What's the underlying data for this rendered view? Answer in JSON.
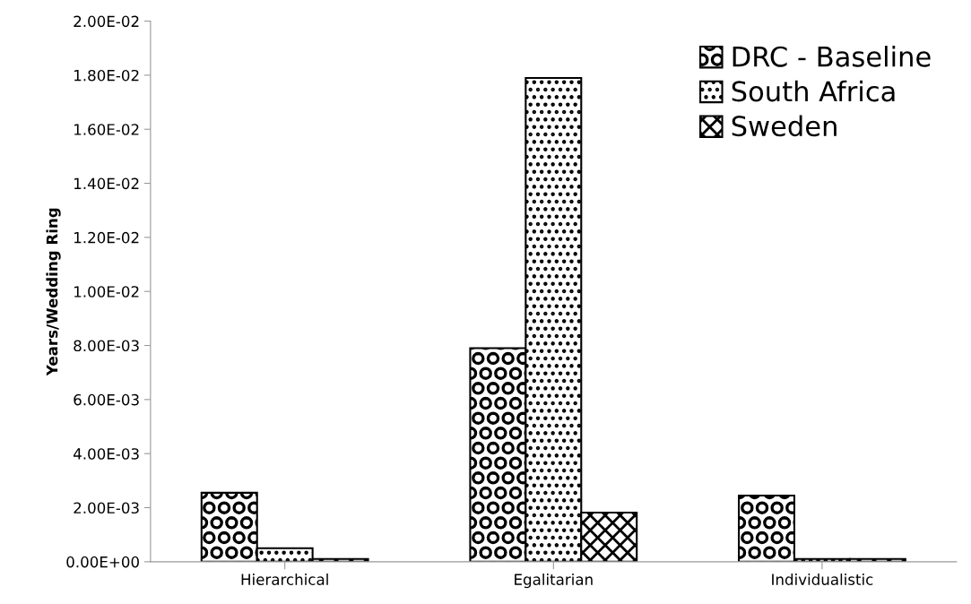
{
  "chart_data": {
    "type": "bar",
    "ylabel": "Years/Wedding Ring",
    "categories": [
      "Hierarchical",
      "Egalitarian",
      "Individualistic"
    ],
    "series": [
      {
        "name": "DRC - Baseline",
        "color": "#000000",
        "values": [
          0.00255,
          0.0079,
          0.00245
        ]
      },
      {
        "name": "South Africa",
        "color": "#000000",
        "values": [
          0.0005,
          0.0179,
          0.0001
        ]
      },
      {
        "name": "Sweden",
        "color": "#000000",
        "values": [
          0.0001,
          0.00182,
          0.0001
        ]
      }
    ],
    "ylim": [
      0,
      0.02
    ],
    "yticks": [
      {
        "value": 0,
        "label": "0.00E+00"
      },
      {
        "value": 0.002,
        "label": "2.00E-03"
      },
      {
        "value": 0.004,
        "label": "4.00E-03"
      },
      {
        "value": 0.006,
        "label": "6.00E-03"
      },
      {
        "value": 0.008,
        "label": "8.00E-03"
      },
      {
        "value": 0.01,
        "label": "1.00E-02"
      },
      {
        "value": 0.012,
        "label": "1.20E-02"
      },
      {
        "value": 0.014,
        "label": "1.40E-02"
      },
      {
        "value": 0.016,
        "label": "1.60E-02"
      },
      {
        "value": 0.018,
        "label": "1.80E-02"
      },
      {
        "value": 0.02,
        "label": "2.00E-02"
      }
    ],
    "grid": false,
    "legend": "top right"
  }
}
